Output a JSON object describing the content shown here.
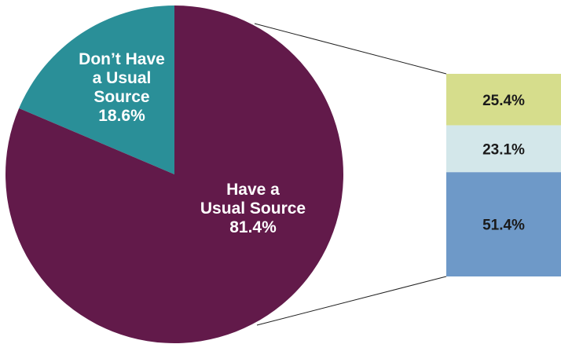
{
  "chart_data": [
    {
      "type": "pie",
      "slices": [
        {
          "lines": [
            "Don’t Have",
            "a Usual",
            "Source",
            "18.6%"
          ],
          "value": 18.6,
          "color": "#2a8f98"
        },
        {
          "lines": [
            "Have a",
            "Usual Source",
            "81.4%"
          ],
          "value": 81.4,
          "color": "#621a4a"
        }
      ]
    },
    {
      "type": "bar",
      "stacked": true,
      "segments": [
        {
          "label": "25.4%",
          "value": 25.4,
          "color": "#d6dd8c"
        },
        {
          "label": "23.1%",
          "value": 23.1,
          "color": "#d3e7ea"
        },
        {
          "label": "51.4%",
          "value": 51.4,
          "color": "#6e99c8"
        }
      ]
    }
  ]
}
